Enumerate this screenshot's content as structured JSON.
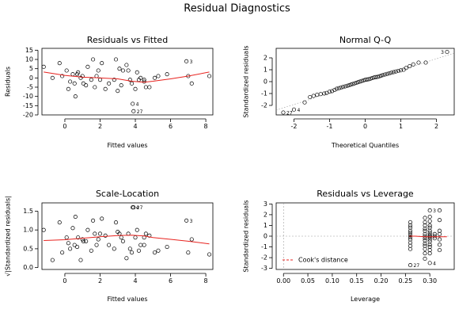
{
  "figure": {
    "title": "Residual Diagnostics"
  },
  "chart_data": [
    {
      "type": "scatter",
      "title": "Residuals vs Fitted",
      "xlabel": "Fitted values",
      "ylabel": "Residuals",
      "xlim": [
        -1.3,
        8.4
      ],
      "ylim": [
        -20,
        16
      ],
      "xticks": [
        0,
        2,
        4,
        6,
        8
      ],
      "yticks": [
        -20,
        -15,
        -10,
        -5,
        0,
        5,
        10,
        15
      ],
      "x": [
        -1.2,
        -0.7,
        -0.3,
        -0.15,
        0.1,
        0.2,
        0.3,
        0.45,
        0.55,
        0.6,
        0.7,
        0.75,
        0.9,
        1.0,
        1.05,
        1.2,
        1.3,
        1.5,
        1.6,
        1.7,
        1.8,
        1.9,
        2.0,
        2.1,
        2.3,
        2.5,
        2.8,
        2.9,
        3.0,
        3.1,
        3.2,
        3.3,
        3.5,
        3.6,
        3.7,
        3.8,
        3.85,
        3.9,
        4.0,
        4.1,
        4.2,
        4.3,
        4.5,
        4.5,
        4.6,
        4.8,
        5.1,
        5.3,
        5.8,
        6.9,
        7.0,
        7.2,
        8.2
      ],
      "y": [
        6,
        0,
        8,
        1,
        4,
        -6,
        -2,
        2,
        -3,
        -10,
        2,
        3,
        0,
        1,
        -3,
        -4,
        6,
        -1,
        10,
        -5,
        1,
        4,
        -1,
        8,
        -6,
        -3,
        -1,
        10,
        -7,
        5,
        -4,
        4,
        7,
        4,
        -1,
        -3,
        -14,
        -18,
        -6,
        3,
        -1,
        0,
        -2,
        -1,
        -5,
        -5,
        0,
        1,
        2,
        9,
        1,
        -3,
        1
      ],
      "smoother": {
        "x": [
          -1.2,
          0,
          1,
          2,
          3,
          3.8,
          4.5,
          5,
          6,
          7,
          8.2
        ],
        "y": [
          3.2,
          1.4,
          0.4,
          0,
          -0.5,
          -1.8,
          -2.3,
          -1.8,
          -0.5,
          1.0,
          3.2
        ]
      },
      "point_labels": [
        {
          "i": 36,
          "text": "4"
        },
        {
          "i": 37,
          "text": "27"
        },
        {
          "i": 49,
          "text": "3"
        }
      ]
    },
    {
      "type": "scatter",
      "title": "Normal Q-Q",
      "xlabel": "Theoretical Quantiles",
      "ylabel": "Standardized residuals",
      "xlim": [
        -2.5,
        2.5
      ],
      "ylim": [
        -2.8,
        2.8
      ],
      "xticks": [
        -2,
        -1,
        0,
        1,
        2
      ],
      "yticks": [
        -2,
        -1,
        0,
        1,
        2
      ],
      "x": [
        -2.3,
        -2.0,
        -1.7,
        -1.55,
        -1.45,
        -1.35,
        -1.25,
        -1.15,
        -1.08,
        -1.0,
        -0.93,
        -0.86,
        -0.8,
        -0.74,
        -0.68,
        -0.62,
        -0.56,
        -0.5,
        -0.45,
        -0.4,
        -0.35,
        -0.3,
        -0.25,
        -0.2,
        -0.15,
        -0.1,
        -0.05,
        0,
        0.05,
        0.1,
        0.15,
        0.2,
        0.25,
        0.3,
        0.35,
        0.4,
        0.45,
        0.5,
        0.56,
        0.62,
        0.68,
        0.74,
        0.8,
        0.86,
        0.93,
        1.0,
        1.08,
        1.15,
        1.25,
        1.35,
        1.5,
        1.7,
        2.3
      ],
      "y": [
        -2.6,
        -2.35,
        -1.75,
        -1.3,
        -1.2,
        -1.1,
        -1.05,
        -1.0,
        -0.95,
        -0.85,
        -0.8,
        -0.7,
        -0.6,
        -0.55,
        -0.5,
        -0.45,
        -0.4,
        -0.35,
        -0.3,
        -0.25,
        -0.2,
        -0.15,
        -0.1,
        -0.05,
        0.0,
        0.05,
        0.1,
        0.15,
        0.18,
        0.2,
        0.25,
        0.3,
        0.35,
        0.38,
        0.4,
        0.45,
        0.5,
        0.55,
        0.6,
        0.65,
        0.7,
        0.75,
        0.8,
        0.85,
        0.9,
        0.95,
        1.0,
        1.15,
        1.3,
        1.45,
        1.6,
        1.6,
        2.5
      ],
      "reference_line": {
        "x": [
          -2.5,
          2.5
        ],
        "y": [
          -2.4,
          2.4
        ]
      },
      "point_labels": [
        {
          "i": 0,
          "text": "27"
        },
        {
          "i": 1,
          "text": "4"
        },
        {
          "i": 52,
          "text": "3"
        }
      ]
    },
    {
      "type": "scatter",
      "title": "Scale-Location",
      "xlabel": "Fitted values",
      "ylabel": "√|Standardized residuals|",
      "xlim": [
        -1.3,
        8.4
      ],
      "ylim": [
        -0.05,
        1.72
      ],
      "xticks": [
        0,
        2,
        4,
        6,
        8
      ],
      "yticks": [
        0.0,
        0.5,
        1.0,
        1.5
      ],
      "x": [
        -1.2,
        -0.7,
        -0.3,
        -0.15,
        0.1,
        0.2,
        0.3,
        0.45,
        0.55,
        0.6,
        0.7,
        0.75,
        0.9,
        1.0,
        1.05,
        1.2,
        1.3,
        1.5,
        1.6,
        1.7,
        1.8,
        1.9,
        2.0,
        2.1,
        2.3,
        2.5,
        2.8,
        2.9,
        3.0,
        3.1,
        3.2,
        3.3,
        3.5,
        3.6,
        3.7,
        3.8,
        3.85,
        3.9,
        4.0,
        4.1,
        4.2,
        4.3,
        4.5,
        4.5,
        4.6,
        4.8,
        5.1,
        5.3,
        5.8,
        6.9,
        7.0,
        7.2,
        8.2
      ],
      "y": [
        1.0,
        0.2,
        1.2,
        0.4,
        0.8,
        0.65,
        0.5,
        1.05,
        0.6,
        1.35,
        0.55,
        0.8,
        0.2,
        0.75,
        0.7,
        0.7,
        1.0,
        0.45,
        1.25,
        0.9,
        0.6,
        0.75,
        0.9,
        1.3,
        0.85,
        0.6,
        0.5,
        1.2,
        0.95,
        0.9,
        0.8,
        0.7,
        0.25,
        0.9,
        0.5,
        0.4,
        1.6,
        1.6,
        0.8,
        1.0,
        0.45,
        0.6,
        0.8,
        0.6,
        0.9,
        0.85,
        0.4,
        0.45,
        0.55,
        1.25,
        0.4,
        0.75,
        0.35
      ],
      "smoother": {
        "x": [
          -1.2,
          0,
          1,
          2,
          3,
          3.8,
          4.5,
          5,
          6,
          7,
          8.2
        ],
        "y": [
          0.72,
          0.74,
          0.78,
          0.82,
          0.85,
          0.86,
          0.84,
          0.8,
          0.75,
          0.7,
          0.63
        ]
      },
      "point_labels": [
        {
          "i": 36,
          "text": "4"
        },
        {
          "i": 37,
          "text": "27"
        },
        {
          "i": 49,
          "text": "3"
        }
      ]
    },
    {
      "type": "scatter",
      "title": "Residuals vs Leverage",
      "xlabel": "Leverage",
      "ylabel": "Standardized residuals",
      "xlim": [
        -0.015,
        0.35
      ],
      "ylim": [
        -3.1,
        3.1
      ],
      "xticks": [
        0.0,
        0.05,
        0.1,
        0.15,
        0.2,
        0.25,
        0.3
      ],
      "yticks": [
        -3,
        -2,
        -1,
        0,
        1,
        2,
        3
      ],
      "x": [
        0.26,
        0.26,
        0.26,
        0.26,
        0.26,
        0.26,
        0.26,
        0.26,
        0.26,
        0.26,
        0.26,
        0.26,
        0.29,
        0.29,
        0.29,
        0.29,
        0.29,
        0.29,
        0.29,
        0.29,
        0.29,
        0.29,
        0.29,
        0.29,
        0.29,
        0.29,
        0.3,
        0.3,
        0.3,
        0.3,
        0.3,
        0.3,
        0.3,
        0.3,
        0.3,
        0.3,
        0.3,
        0.3,
        0.3,
        0.3,
        0.3,
        0.3,
        0.3,
        0.31,
        0.31,
        0.31,
        0.32,
        0.32,
        0.32,
        0.32,
        0.32,
        0.32,
        0.32
      ],
      "y": [
        1.3,
        1.0,
        0.8,
        0.5,
        0.3,
        0.1,
        -0.1,
        -0.3,
        -0.6,
        -0.9,
        -1.2,
        -2.7,
        1.7,
        1.3,
        1.0,
        0.7,
        0.5,
        0.2,
        0.0,
        -0.2,
        -0.4,
        -0.7,
        -0.9,
        -1.2,
        -1.6,
        -2.1,
        2.4,
        1.8,
        1.4,
        1.0,
        0.8,
        0.5,
        0.3,
        0.1,
        0.0,
        -0.1,
        -0.3,
        -0.5,
        -0.8,
        -1.0,
        -1.3,
        -1.6,
        -2.5,
        0.2,
        0.0,
        -0.2,
        2.4,
        1.5,
        0.5,
        0.2,
        -0.3,
        -0.8,
        -1.3
      ],
      "smoother": {
        "x": [
          0.258,
          0.27,
          0.29,
          0.31,
          0.335
        ],
        "y": [
          0.0,
          0.0,
          -0.05,
          -0.05,
          -0.05
        ]
      },
      "point_labels": [
        {
          "i": 11,
          "text": "27"
        },
        {
          "i": 26,
          "text": "3"
        },
        {
          "i": 42,
          "text": "4"
        }
      ],
      "legend": {
        "entries": [
          "Cook's distance"
        ],
        "placement": "bottom-left"
      }
    }
  ]
}
